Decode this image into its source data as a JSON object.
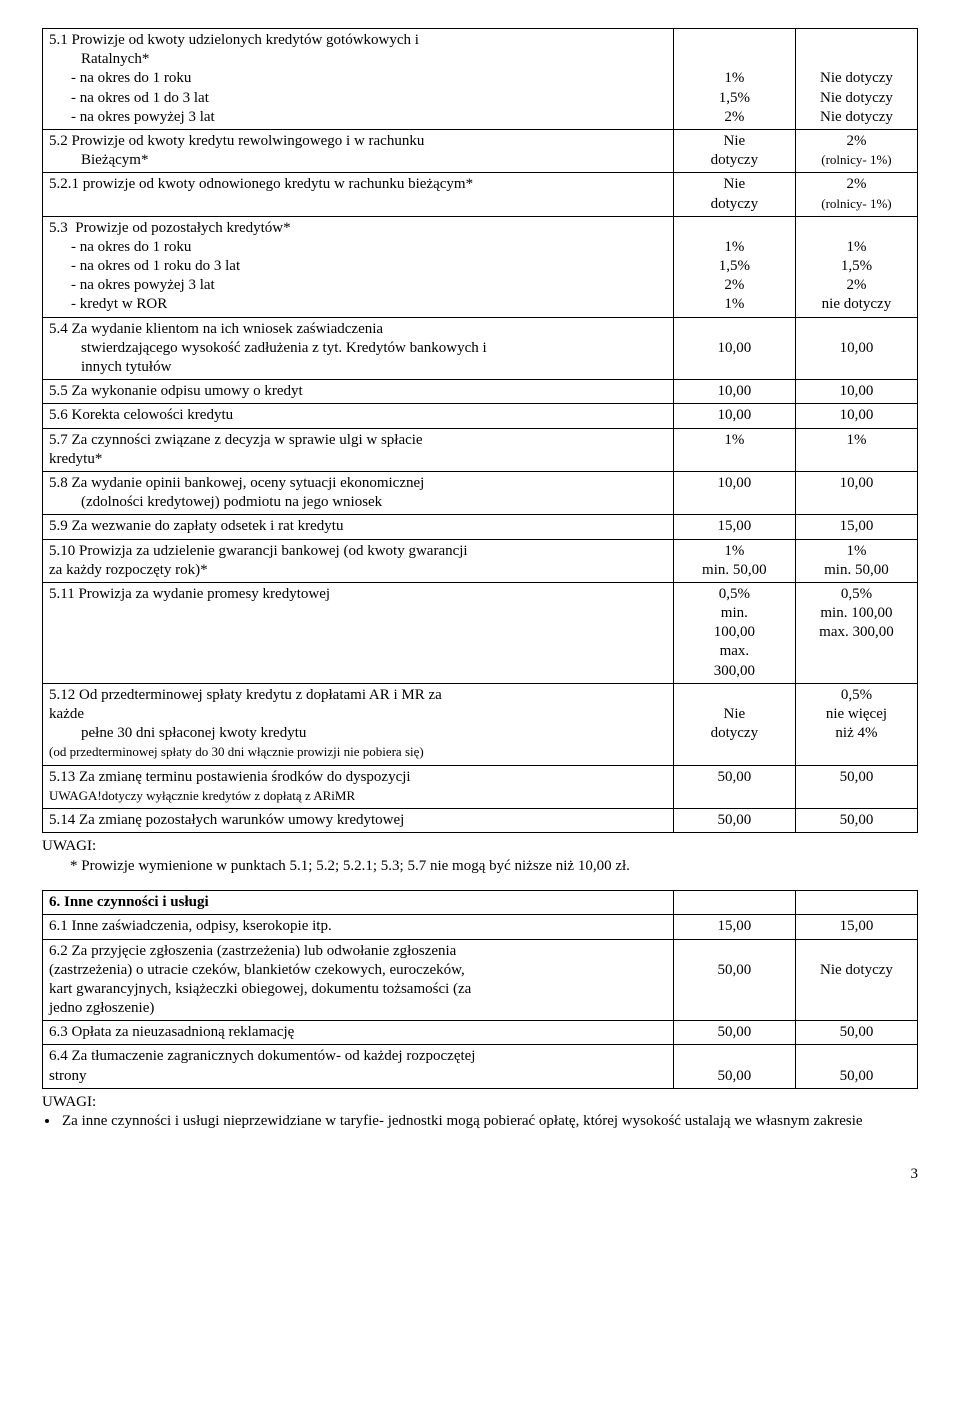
{
  "rows": [
    {
      "desc_html": "5.1 Prowizje od kwoty udzielonych kredytów gotówkowych i<br><span class='indent1'>Ratalnych*</span><span class='indent2'>- na okres do 1 roku</span><span class='indent2'>- na okres od 1 do 3 lat</span><span class='indent2'>- na okres powyżej 3 lat</span>",
      "v1_html": "<br><br>1%<br>1,5%<br>2%",
      "v2_html": "<br><br>Nie dotyczy<br>Nie dotyczy<br>Nie dotyczy"
    },
    {
      "desc_html": "5.2 Prowizje od kwoty kredytu rewolwingowego i w rachunku<br><span class='indent1'>Bieżącym*</span>",
      "v1_html": "Nie<br>dotyczy",
      "v2_html": "2%<br><span class='small'>(rolnicy- 1%)</span>"
    },
    {
      "desc_html": "5.2.1 prowizje od kwoty odnowionego kredytu w rachunku bieżącym*",
      "v1_html": "Nie<br>dotyczy",
      "v2_html": "2%<br><span class='small'>(rolnicy- 1%)</span>"
    },
    {
      "desc_html": "5.3&nbsp;&nbsp;Prowizje od pozostałych kredytów*<br><span class='indent2'>- na okres do 1 roku</span><span class='indent2'>- na okres od 1 roku do 3 lat</span><span class='indent2'>- na okres powyżej 3 lat</span><span class='indent2'>- kredyt w ROR</span>",
      "v1_html": "<br>1%<br>1,5%<br>2%<br>1%",
      "v2_html": "<br>1%<br>1,5%<br>2%<br>nie dotyczy"
    },
    {
      "desc_html": "5.4 Za wydanie klientom na ich wniosek zaświadczenia<br><span class='indent1'>stwierdzającego wysokość zadłużenia z tyt. Kredytów bankowych i</span><span class='indent1'>innych tytułów</span>",
      "v1_html": "<br>10,00",
      "v2_html": "<br>10,00"
    },
    {
      "desc_html": "5.5 Za wykonanie odpisu umowy o kredyt",
      "v1_html": "10,00",
      "v2_html": "10,00"
    },
    {
      "desc_html": "5.6 Korekta celowości kredytu",
      "v1_html": "10,00",
      "v2_html": "10,00"
    },
    {
      "desc_html": "5.7 Za czynności związane z decyzja w sprawie ulgi w spłacie<br>kredytu*",
      "v1_html": "1%",
      "v2_html": "1%"
    },
    {
      "desc_html": "5.8 Za wydanie opinii bankowej, oceny sytuacji ekonomicznej<br><span class='indent1'>(zdolności kredytowej) podmiotu na jego wniosek</span>",
      "v1_html": "10,00",
      "v2_html": "10,00"
    },
    {
      "desc_html": "5.9 Za wezwanie do zapłaty odsetek i rat kredytu",
      "v1_html": "15,00",
      "v2_html": "15,00"
    },
    {
      "desc_html": "5.10 Prowizja za udzielenie gwarancji bankowej (od kwoty gwarancji<br>za każdy rozpoczęty rok)*",
      "v1_html": "1%<br>min. 50,00",
      "v2_html": "1%<br>min. 50,00"
    },
    {
      "desc_html": "5.11 Prowizja za wydanie promesy kredytowej",
      "v1_html": "0,5%<br>min.<br>100,00<br>max.<br>300,00",
      "v2_html": "0,5%<br>min. 100,00<br>max. 300,00"
    },
    {
      "desc_html": "5.12 Od przedterminowej spłaty kredytu z dopłatami AR i MR za<br>każde<br><span class='indent1'>pełne 30 dni spłaconej kwoty kredytu</span><span class='small'>(od przedterminowej spłaty do 30 dni włącznie prowizji nie pobiera się)</span>",
      "v1_html": "<br>Nie<br>dotyczy",
      "v2_html": "0,5%<br>nie więcej<br>niż 4%"
    },
    {
      "desc_html": "5.13 Za zmianę terminu postawienia środków do dyspozycji<br><span class='small'>UWAGA!dotyczy wyłącznie kredytów z dopłatą z ARiMR</span>",
      "v1_html": "50,00",
      "v2_html": "50,00"
    },
    {
      "desc_html": "5.14 Za zmianę pozostałych warunków umowy kredytowej",
      "v1_html": "50,00",
      "v2_html": "50,00"
    }
  ],
  "uwagi1_label": "UWAGI:",
  "uwagi1_text": "* Prowizje wymienione w punktach 5.1; 5.2; 5.2.1; 5.3; 5.7 nie mogą być niższe niż 10,00 zł.",
  "section6_header": "6. Inne czynności i usługi",
  "rows6": [
    {
      "desc_html": "6.1 Inne zaświadczenia, odpisy, kserokopie itp.",
      "v1_html": "15,00",
      "v2_html": "15,00"
    },
    {
      "desc_html": "6.2 Za przyjęcie zgłoszenia (zastrzeżenia) lub odwołanie zgłoszenia<br>(zastrzeżenia) o utracie czeków, blankietów czekowych, euroczeków,<br>kart gwarancyjnych, książeczki obiegowej, dokumentu tożsamości (za<br>jedno zgłoszenie)",
      "v1_html": "<br>50,00",
      "v2_html": "<br>Nie dotyczy"
    },
    {
      "desc_html": "6.3 Opłata za nieuzasadnioną reklamację",
      "v1_html": "50,00",
      "v2_html": "50,00"
    },
    {
      "desc_html": "6.4 Za tłumaczenie zagranicznych dokumentów- od każdej rozpoczętej<br>strony",
      "v1_html": "<br>50,00",
      "v2_html": "<br>50,00"
    }
  ],
  "uwagi2_label": "UWAGI:",
  "uwagi2_bullet": "Za inne czynności i usługi nieprzewidziane w taryfie- jednostki mogą pobierać opłatę, której wysokość ustalają we własnym zakresie",
  "page_number": "3"
}
